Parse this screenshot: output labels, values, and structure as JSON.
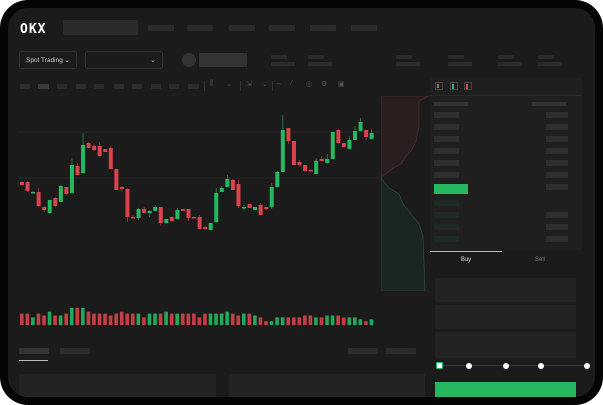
{
  "brand": {
    "logo": "OKX"
  },
  "header": {
    "market_selector": "Spot Trading"
  },
  "order_form": {
    "tabs": [
      "Buy",
      "Sell"
    ],
    "active_tab": "Buy"
  },
  "colors": {
    "up": "#25b861",
    "down": "#d9434a",
    "background": "#1b1b1b",
    "accent": "#25b861"
  },
  "icons": {
    "order_book_views": [
      "both-sides-icon",
      "bids-only-icon",
      "asks-only-icon"
    ]
  },
  "leverage_slider": {
    "value_percent": 0,
    "stops": 5
  },
  "chart_data": {
    "type": "candlestick",
    "candles": [
      {
        "o": 68,
        "h": 69,
        "l": 64,
        "c": 65
      },
      {
        "o": 68,
        "h": 69,
        "l": 58,
        "c": 59
      },
      {
        "o": 57,
        "h": 59,
        "l": 57,
        "c": 58
      },
      {
        "o": 58,
        "h": 62,
        "l": 43,
        "c": 44
      },
      {
        "o": 43,
        "h": 44,
        "l": 38,
        "c": 40
      },
      {
        "o": 37,
        "h": 50,
        "l": 36,
        "c": 50
      },
      {
        "o": 52,
        "h": 53,
        "l": 43,
        "c": 44
      },
      {
        "o": 48,
        "h": 65,
        "l": 48,
        "c": 64
      },
      {
        "o": 63,
        "h": 63,
        "l": 55,
        "c": 56
      },
      {
        "o": 57,
        "h": 92,
        "l": 57,
        "c": 85
      },
      {
        "o": 84,
        "h": 87,
        "l": 75,
        "c": 75
      },
      {
        "o": 77,
        "h": 117,
        "l": 77,
        "c": 105
      },
      {
        "o": 107,
        "h": 108,
        "l": 102,
        "c": 102
      },
      {
        "o": 104,
        "h": 106,
        "l": 99,
        "c": 100
      },
      {
        "o": 104,
        "h": 108,
        "l": 93,
        "c": 94
      },
      {
        "o": 101,
        "h": 101,
        "l": 98,
        "c": 98
      },
      {
        "o": 102,
        "h": 104,
        "l": 81,
        "c": 81
      },
      {
        "o": 81,
        "h": 81,
        "l": 60,
        "c": 60
      },
      {
        "o": 63,
        "h": 64,
        "l": 58,
        "c": 61
      },
      {
        "o": 61,
        "h": 62,
        "l": 28,
        "c": 33
      },
      {
        "o": 33,
        "h": 35,
        "l": 32,
        "c": 32
      },
      {
        "o": 32,
        "h": 42,
        "l": 30,
        "c": 41
      },
      {
        "o": 41,
        "h": 43,
        "l": 37,
        "c": 37
      },
      {
        "o": 37,
        "h": 40,
        "l": 33,
        "c": 39
      },
      {
        "o": 39,
        "h": 45,
        "l": 39,
        "c": 43
      },
      {
        "o": 43,
        "h": 43,
        "l": 24,
        "c": 27
      },
      {
        "o": 27,
        "h": 31,
        "l": 26,
        "c": 31
      },
      {
        "o": 33,
        "h": 34,
        "l": 28,
        "c": 29
      },
      {
        "o": 31,
        "h": 42,
        "l": 31,
        "c": 40
      },
      {
        "o": 41,
        "h": 41,
        "l": 39,
        "c": 39
      },
      {
        "o": 41,
        "h": 41,
        "l": 29,
        "c": 32
      },
      {
        "o": 33,
        "h": 33,
        "l": 32,
        "c": 32
      },
      {
        "o": 33,
        "h": 35,
        "l": 21,
        "c": 21
      },
      {
        "o": 23,
        "h": 24,
        "l": 21,
        "c": 21
      },
      {
        "o": 20,
        "h": 27,
        "l": 19,
        "c": 27
      },
      {
        "o": 28,
        "h": 62,
        "l": 27,
        "c": 57
      },
      {
        "o": 58,
        "h": 64,
        "l": 58,
        "c": 62
      },
      {
        "o": 63,
        "h": 75,
        "l": 63,
        "c": 71
      },
      {
        "o": 70,
        "h": 71,
        "l": 60,
        "c": 60
      },
      {
        "o": 66,
        "h": 70,
        "l": 42,
        "c": 44
      },
      {
        "o": 42,
        "h": 45,
        "l": 40,
        "c": 43
      },
      {
        "o": 46,
        "h": 46,
        "l": 42,
        "c": 42
      },
      {
        "o": 40,
        "h": 43,
        "l": 40,
        "c": 43
      },
      {
        "o": 45,
        "h": 47,
        "l": 35,
        "c": 35
      },
      {
        "o": 43,
        "h": 43,
        "l": 40,
        "c": 41
      },
      {
        "o": 43,
        "h": 67,
        "l": 41,
        "c": 63
      },
      {
        "o": 63,
        "h": 79,
        "l": 63,
        "c": 78
      },
      {
        "o": 78,
        "h": 135,
        "l": 78,
        "c": 120
      },
      {
        "o": 122,
        "h": 122,
        "l": 106,
        "c": 109
      },
      {
        "o": 109,
        "h": 109,
        "l": 85,
        "c": 85
      },
      {
        "o": 88,
        "h": 90,
        "l": 83,
        "c": 85
      },
      {
        "o": 85,
        "h": 85,
        "l": 78,
        "c": 79
      },
      {
        "o": 80,
        "h": 81,
        "l": 79,
        "c": 79
      },
      {
        "o": 76,
        "h": 92,
        "l": 76,
        "c": 89
      },
      {
        "o": 91,
        "h": 94,
        "l": 89,
        "c": 89
      },
      {
        "o": 87,
        "h": 96,
        "l": 87,
        "c": 91
      },
      {
        "o": 91,
        "h": 118,
        "l": 91,
        "c": 118
      },
      {
        "o": 120,
        "h": 121,
        "l": 106,
        "c": 107
      },
      {
        "o": 107,
        "h": 107,
        "l": 103,
        "c": 103
      },
      {
        "o": 101,
        "h": 114,
        "l": 101,
        "c": 110
      },
      {
        "o": 110,
        "h": 124,
        "l": 110,
        "c": 119
      },
      {
        "o": 119,
        "h": 132,
        "l": 119,
        "c": 128
      },
      {
        "o": 120,
        "h": 120,
        "l": 110,
        "c": 113
      },
      {
        "o": 111,
        "h": 121,
        "l": 111,
        "c": 117
      }
    ],
    "volumes": [
      6,
      6,
      4,
      6,
      5,
      7,
      5,
      5,
      6,
      9,
      9,
      9,
      7,
      6,
      6,
      6,
      5,
      6,
      7,
      6,
      6,
      6,
      4,
      6,
      6,
      6,
      7,
      6,
      6,
      6,
      6,
      6,
      4,
      6,
      6,
      6,
      6,
      7,
      6,
      5,
      6,
      6,
      5,
      4,
      2,
      2,
      4,
      4,
      4,
      4,
      4,
      5,
      5,
      4,
      4,
      5,
      5,
      5,
      4,
      4,
      4,
      3,
      2,
      3
    ],
    "grid": true
  }
}
